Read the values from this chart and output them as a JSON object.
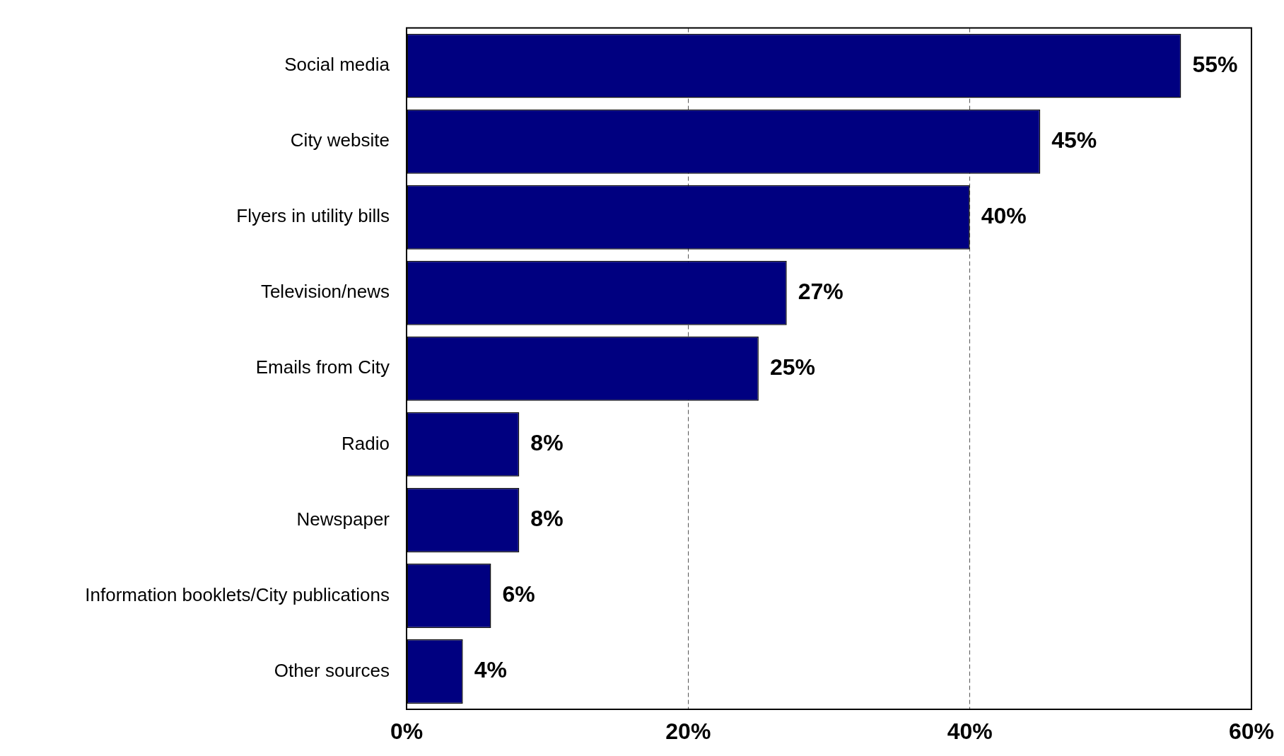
{
  "chart_data": {
    "type": "bar",
    "orientation": "horizontal",
    "categories": [
      "Social media",
      "City website",
      "Flyers in utility bills",
      "Television/news",
      "Emails from City",
      "Radio",
      "Newspaper",
      "Information booklets/City publications",
      "Other sources"
    ],
    "values": [
      55,
      45,
      40,
      27,
      25,
      8,
      8,
      6,
      4
    ],
    "value_labels": [
      "55%",
      "45%",
      "40%",
      "27%",
      "25%",
      "8%",
      "8%",
      "6%",
      "4%"
    ],
    "color": "#000080",
    "xlim": [
      0,
      60
    ],
    "xticks": [
      {
        "value": 0,
        "label": "0%"
      },
      {
        "value": 20,
        "label": "20%"
      },
      {
        "value": 40,
        "label": "40%"
      },
      {
        "value": 60,
        "label": "60%"
      }
    ],
    "grid": "x",
    "legend": false
  }
}
